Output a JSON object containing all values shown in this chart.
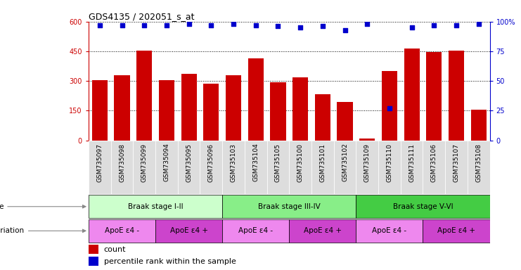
{
  "title": "GDS4135 / 202051_s_at",
  "samples": [
    "GSM735097",
    "GSM735098",
    "GSM735099",
    "GSM735094",
    "GSM735095",
    "GSM735096",
    "GSM735103",
    "GSM735104",
    "GSM735105",
    "GSM735100",
    "GSM735101",
    "GSM735102",
    "GSM735109",
    "GSM735110",
    "GSM735111",
    "GSM735106",
    "GSM735107",
    "GSM735108"
  ],
  "counts": [
    305,
    330,
    455,
    305,
    335,
    285,
    330,
    415,
    295,
    320,
    235,
    195,
    10,
    350,
    465,
    445,
    455,
    155
  ],
  "percentiles": [
    97,
    97,
    97,
    97,
    98,
    97,
    98,
    97,
    96,
    95,
    96,
    93,
    98,
    27,
    95,
    97,
    97,
    98
  ],
  "bar_color": "#cc0000",
  "dot_color": "#0000cc",
  "ylim_left": [
    0,
    600
  ],
  "ylim_right": [
    0,
    100
  ],
  "yticks_left": [
    0,
    150,
    300,
    450,
    600
  ],
  "yticks_right": [
    0,
    25,
    50,
    75,
    100
  ],
  "disease_state_groups": [
    {
      "label": "Braak stage I-II",
      "start": 0,
      "end": 5,
      "color": "#ccffcc"
    },
    {
      "label": "Braak stage III-IV",
      "start": 6,
      "end": 11,
      "color": "#88ee88"
    },
    {
      "label": "Braak stage V-VI",
      "start": 12,
      "end": 17,
      "color": "#44cc44"
    }
  ],
  "genotype_groups": [
    {
      "label": "ApoE ε4 -",
      "start": 0,
      "end": 2,
      "color": "#ee88ee"
    },
    {
      "label": "ApoE ε4 +",
      "start": 3,
      "end": 5,
      "color": "#cc44cc"
    },
    {
      "label": "ApoE ε4 -",
      "start": 6,
      "end": 8,
      "color": "#ee88ee"
    },
    {
      "label": "ApoE ε4 +",
      "start": 9,
      "end": 11,
      "color": "#cc44cc"
    },
    {
      "label": "ApoE ε4 -",
      "start": 12,
      "end": 14,
      "color": "#ee88ee"
    },
    {
      "label": "ApoE ε4 +",
      "start": 15,
      "end": 17,
      "color": "#cc44cc"
    }
  ],
  "left_label_color": "#cc0000",
  "right_label_color": "#0000cc",
  "legend_count_color": "#cc0000",
  "legend_pct_color": "#0000cc",
  "xtick_box_color": "#dddddd"
}
